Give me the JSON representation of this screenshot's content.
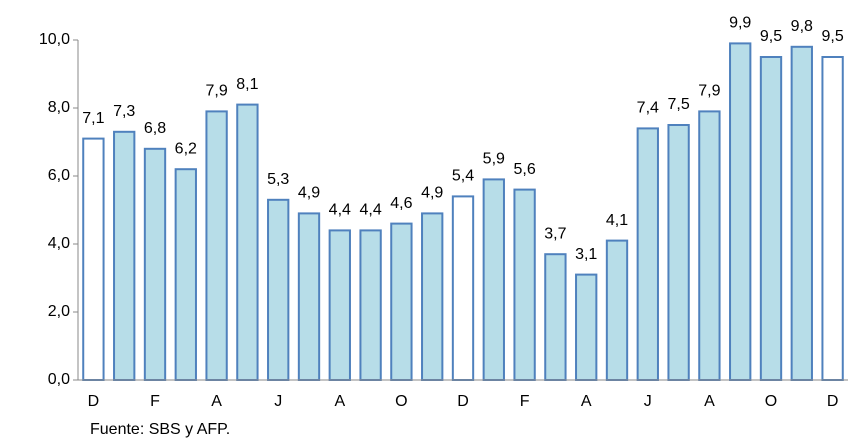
{
  "chart_data": {
    "type": "bar",
    "categories": [
      "D",
      null,
      "F",
      null,
      "A",
      null,
      "J",
      null,
      "A",
      null,
      "O",
      null,
      "D",
      null,
      "F",
      null,
      "A",
      null,
      "J",
      null,
      "A",
      null,
      "O",
      null,
      "D"
    ],
    "values": [
      7.1,
      7.3,
      6.8,
      6.2,
      7.9,
      8.1,
      5.3,
      4.9,
      4.4,
      4.4,
      4.6,
      4.9,
      5.4,
      5.9,
      5.6,
      3.7,
      3.1,
      4.1,
      7.4,
      7.5,
      7.9,
      9.9,
      9.5,
      9.8,
      9.5
    ],
    "value_labels": [
      "7,1",
      "7,3",
      "6,8",
      "6,2",
      "7,9",
      "8,1",
      "5,3",
      "4,9",
      "4,4",
      "4,4",
      "4,6",
      "4,9",
      "5,4",
      "5,9",
      "5,6",
      "3,7",
      "3,1",
      "4,1",
      "7,4",
      "7,5",
      "7,9",
      "9,9",
      "9,5",
      "9,8",
      "9,5"
    ],
    "colors": [
      "#ffffff",
      "#b7dde8",
      "#b7dde8",
      "#b7dde8",
      "#b7dde8",
      "#b7dde8",
      "#b7dde8",
      "#b7dde8",
      "#b7dde8",
      "#b7dde8",
      "#b7dde8",
      "#b7dde8",
      "#ffffff",
      "#b7dde8",
      "#b7dde8",
      "#b7dde8",
      "#b7dde8",
      "#b7dde8",
      "#b7dde8",
      "#b7dde8",
      "#b7dde8",
      "#b7dde8",
      "#b7dde8",
      "#b7dde8",
      "#ffffff"
    ],
    "border_color": "#4f81bd",
    "ylim": [
      0,
      10
    ],
    "yticks": [
      {
        "value": 0,
        "label": "0,0"
      },
      {
        "value": 2,
        "label": "2,0"
      },
      {
        "value": 4,
        "label": "4,0"
      },
      {
        "value": 6,
        "label": "6,0"
      },
      {
        "value": 8,
        "label": "8,0"
      },
      {
        "value": 10,
        "label": "10,0"
      }
    ],
    "grid": false,
    "source": "Fuente: SBS y AFP."
  }
}
